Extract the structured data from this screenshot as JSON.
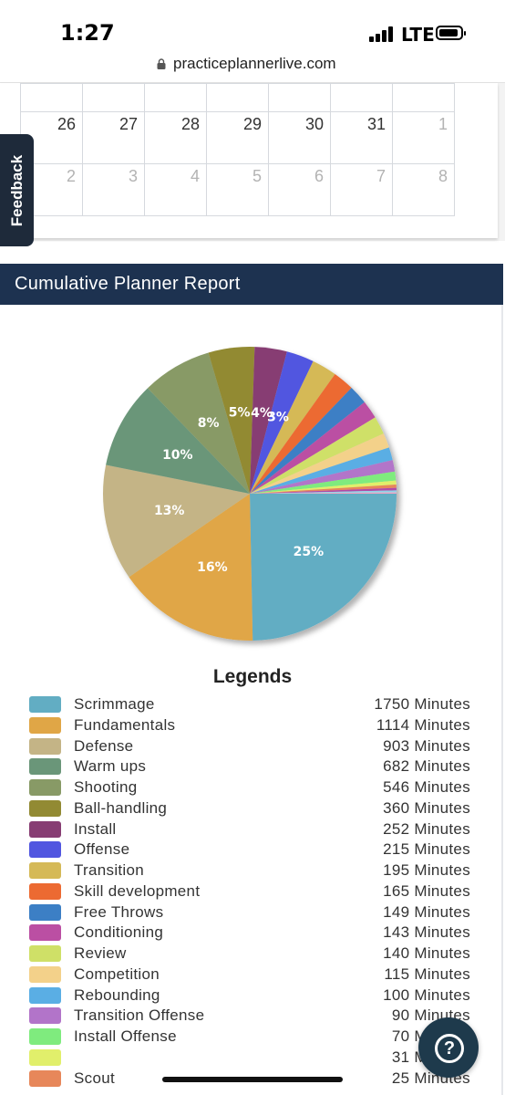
{
  "status_bar": {
    "time": "1:27",
    "network": "LTE"
  },
  "browser": {
    "url": "practiceplannerlive.com"
  },
  "calendar": {
    "rows": [
      [
        {
          "day": "",
          "muted": false
        },
        {
          "day": "",
          "muted": false
        },
        {
          "day": "",
          "muted": false
        },
        {
          "day": "",
          "muted": false
        },
        {
          "day": "",
          "muted": false
        },
        {
          "day": "",
          "muted": false
        },
        {
          "day": "",
          "muted": false
        }
      ],
      [
        {
          "day": "26",
          "muted": false
        },
        {
          "day": "27",
          "muted": false
        },
        {
          "day": "28",
          "muted": false
        },
        {
          "day": "29",
          "muted": false
        },
        {
          "day": "30",
          "muted": false
        },
        {
          "day": "31",
          "muted": false
        },
        {
          "day": "1",
          "muted": true
        }
      ],
      [
        {
          "day": "2",
          "muted": true
        },
        {
          "day": "3",
          "muted": true
        },
        {
          "day": "4",
          "muted": true
        },
        {
          "day": "5",
          "muted": true
        },
        {
          "day": "6",
          "muted": true
        },
        {
          "day": "7",
          "muted": true
        },
        {
          "day": "8",
          "muted": true
        }
      ]
    ]
  },
  "feedback": {
    "label": "Feedback"
  },
  "report": {
    "title": "Cumulative Planner Report"
  },
  "legend_title": "Legends",
  "chart_data": {
    "type": "pie",
    "slices": [
      {
        "label": "Scrimmage",
        "value": 1750,
        "display": "1750 Minutes",
        "pct_label": "25%",
        "color": "#62adc3"
      },
      {
        "label": "Fundamentals",
        "value": 1114,
        "display": "1114 Minutes",
        "pct_label": "16%",
        "color": "#e0a646"
      },
      {
        "label": "Defense",
        "value": 903,
        "display": "903 Minutes",
        "pct_label": "13%",
        "color": "#c4b486"
      },
      {
        "label": "Warm ups",
        "value": 682,
        "display": "682 Minutes",
        "pct_label": "10%",
        "color": "#6a9679"
      },
      {
        "label": "Shooting",
        "value": 546,
        "display": "546 Minutes",
        "pct_label": "8%",
        "color": "#889a66"
      },
      {
        "label": "Ball-handling",
        "value": 360,
        "display": "360 Minutes",
        "pct_label": "5%",
        "color": "#928a33"
      },
      {
        "label": "Install",
        "value": 252,
        "display": "252 Minutes",
        "pct_label": "4%",
        "color": "#873d73"
      },
      {
        "label": "Offense",
        "value": 215,
        "display": "215 Minutes",
        "pct_label": "3%",
        "color": "#5156e0"
      },
      {
        "label": "Transition",
        "value": 195,
        "display": "195 Minutes",
        "pct_label": "",
        "color": "#d5b957"
      },
      {
        "label": "Skill development",
        "value": 165,
        "display": "165 Minutes",
        "pct_label": "",
        "color": "#ec6a32"
      },
      {
        "label": "Free Throws",
        "value": 149,
        "display": "149 Minutes",
        "pct_label": "",
        "color": "#3c7fc5"
      },
      {
        "label": "Conditioning",
        "value": 143,
        "display": "143 Minutes",
        "pct_label": "",
        "color": "#bb4fa3"
      },
      {
        "label": "Review",
        "value": 140,
        "display": "140 Minutes",
        "pct_label": "",
        "color": "#cfe067"
      },
      {
        "label": "Competition",
        "value": 115,
        "display": "115 Minutes",
        "pct_label": "",
        "color": "#f3d18a"
      },
      {
        "label": "Rebounding",
        "value": 100,
        "display": "100 Minutes",
        "pct_label": "",
        "color": "#5aaee4"
      },
      {
        "label": "Transition Offense",
        "value": 90,
        "display": "90 Minutes",
        "pct_label": "",
        "color": "#b274c9"
      },
      {
        "label": "Install Offense",
        "value": 70,
        "display": "70 Minutes",
        "pct_label": "",
        "color": "#7feb7e"
      },
      {
        "label": "",
        "value": 31,
        "display": "31 Minutes",
        "pct_label": "",
        "color": "#e1ef6b"
      },
      {
        "label": "Scout",
        "value": 25,
        "display": "25 Minutes",
        "pct_label": "",
        "color": "#e7875a"
      },
      {
        "label": "",
        "value": 20,
        "display": "",
        "pct_label": "",
        "color": "#b148a6"
      },
      {
        "label": "",
        "value": 15,
        "display": "",
        "pct_label": "",
        "color": "#8fd3e6"
      },
      {
        "label": "",
        "value": 10,
        "display": "",
        "pct_label": "",
        "color": "#f3a3c4"
      }
    ]
  },
  "help": {
    "icon": "question-mark-icon",
    "glyph": "?"
  }
}
